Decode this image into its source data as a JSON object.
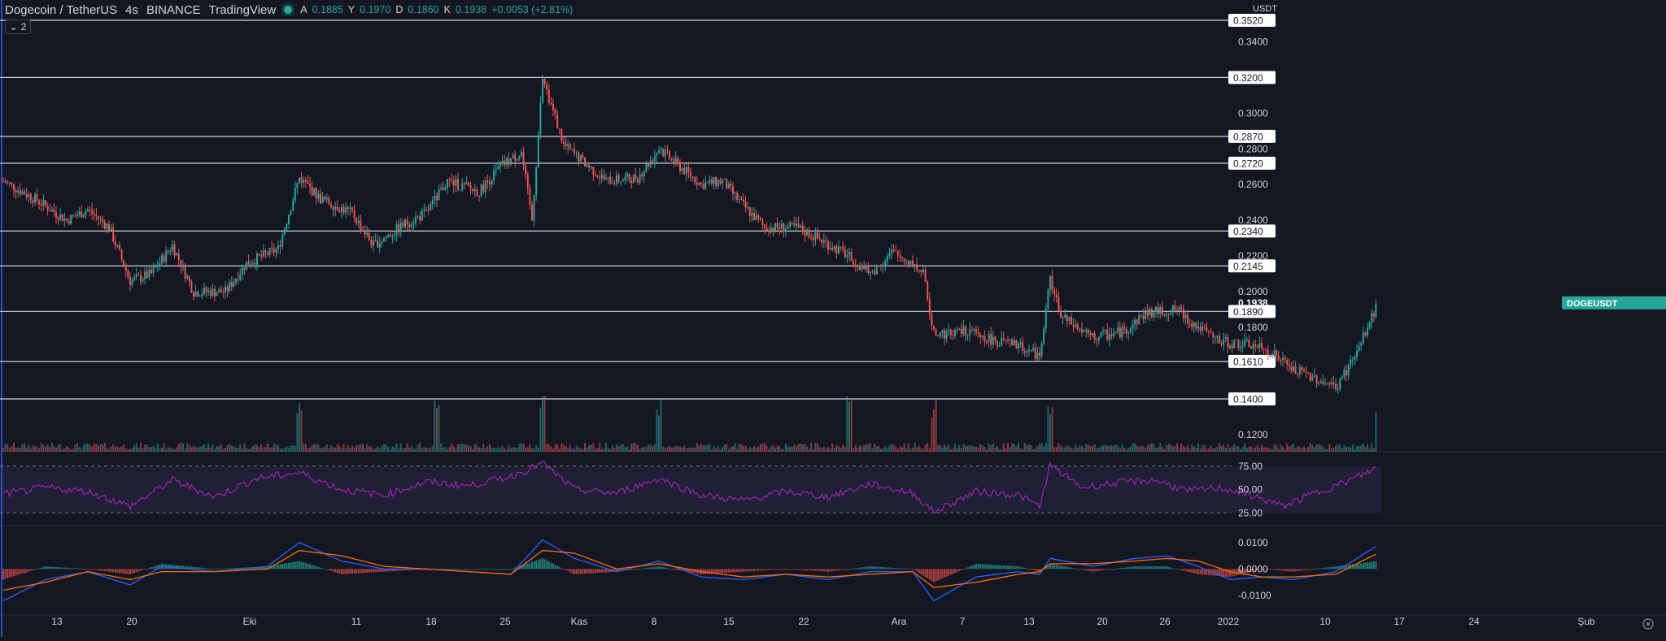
{
  "header": {
    "symbol": "Dogecoin / TetherUS",
    "interval": "4s",
    "exchange": "BINANCE",
    "source": "TradingView",
    "ohlc": [
      {
        "key": "A",
        "value": "0.1885"
      },
      {
        "key": "Y",
        "value": "0.1970"
      },
      {
        "key": "D",
        "value": "0.1860"
      },
      {
        "key": "K",
        "value": "0.1938"
      }
    ],
    "change": "+0.0053 (+2.81%)",
    "indicator_count": "2"
  },
  "colors": {
    "background": "#131722",
    "up": "#26a69a",
    "down": "#ef5350",
    "rsi": "#9c27b0",
    "macd": "#2962ff",
    "signal": "#ff6d00",
    "grid_text": "#d1d4dc"
  },
  "chart_data": {
    "type": "candlestick",
    "price_axis": {
      "unit": "USDT",
      "ticks": [
        "0.3400",
        "0.3000",
        "0.2800",
        "0.2600",
        "0.2400",
        "0.2200",
        "0.2000",
        "0.1800",
        "0.1200"
      ],
      "range": [
        0.11,
        0.355
      ]
    },
    "horizontal_levels": [
      "0.3520",
      "0.3200",
      "0.2870",
      "0.2720",
      "0.2340",
      "0.2145",
      "0.1890",
      "0.1610",
      "0.1400"
    ],
    "current_price": {
      "symbol": "DOGEUSDT",
      "value": "0.1938"
    },
    "time_axis": {
      "labels": [
        "13",
        "20",
        "Eki",
        "11",
        "18",
        "25",
        "Kas",
        "8",
        "15",
        "22",
        "Ara",
        "7",
        "13",
        "20",
        "26",
        "2022",
        "10",
        "17",
        "24",
        "Şub"
      ]
    },
    "price_path": [
      [
        0,
        0.262
      ],
      [
        3,
        0.252
      ],
      [
        6,
        0.24
      ],
      [
        8,
        0.246
      ],
      [
        10,
        0.236
      ],
      [
        12,
        0.206
      ],
      [
        14,
        0.21
      ],
      [
        16,
        0.226
      ],
      [
        18,
        0.2
      ],
      [
        21,
        0.2
      ],
      [
        23,
        0.216
      ],
      [
        26,
        0.224
      ],
      [
        28,
        0.264
      ],
      [
        30,
        0.252
      ],
      [
        33,
        0.244
      ],
      [
        35,
        0.226
      ],
      [
        38,
        0.238
      ],
      [
        40,
        0.244
      ],
      [
        42,
        0.262
      ],
      [
        45,
        0.256
      ],
      [
        47,
        0.27
      ],
      [
        49,
        0.278
      ],
      [
        50,
        0.24
      ],
      [
        51,
        0.32
      ],
      [
        53,
        0.282
      ],
      [
        55,
        0.272
      ],
      [
        57,
        0.262
      ],
      [
        60,
        0.264
      ],
      [
        62,
        0.28
      ],
      [
        64,
        0.27
      ],
      [
        66,
        0.26
      ],
      [
        68,
        0.262
      ],
      [
        70,
        0.248
      ],
      [
        72,
        0.236
      ],
      [
        75,
        0.236
      ],
      [
        77,
        0.23
      ],
      [
        80,
        0.22
      ],
      [
        82,
        0.21
      ],
      [
        84,
        0.222
      ],
      [
        86,
        0.216
      ],
      [
        87,
        0.21
      ],
      [
        88,
        0.176
      ],
      [
        91,
        0.178
      ],
      [
        94,
        0.172
      ],
      [
        96,
        0.17
      ],
      [
        98,
        0.164
      ],
      [
        99,
        0.208
      ],
      [
        100,
        0.186
      ],
      [
        103,
        0.174
      ],
      [
        106,
        0.178
      ],
      [
        108,
        0.188
      ],
      [
        111,
        0.19
      ],
      [
        113,
        0.18
      ],
      [
        115,
        0.172
      ],
      [
        118,
        0.17
      ],
      [
        120,
        0.166
      ],
      [
        122,
        0.156
      ],
      [
        124,
        0.152
      ],
      [
        126,
        0.146
      ],
      [
        128,
        0.166
      ],
      [
        130,
        0.1938
      ]
    ],
    "volume_spikes": [
      28,
      41,
      51,
      62,
      80,
      88,
      99,
      130
    ],
    "rsi": {
      "ticks": [
        "75.00",
        "50.00",
        "25.00"
      ],
      "upper": 75,
      "lower": 25,
      "path": [
        [
          0,
          45
        ],
        [
          4,
          52
        ],
        [
          8,
          48
        ],
        [
          12,
          32
        ],
        [
          16,
          60
        ],
        [
          20,
          42
        ],
        [
          24,
          62
        ],
        [
          28,
          68
        ],
        [
          32,
          50
        ],
        [
          36,
          44
        ],
        [
          40,
          58
        ],
        [
          44,
          54
        ],
        [
          48,
          64
        ],
        [
          51,
          78
        ],
        [
          54,
          50
        ],
        [
          58,
          46
        ],
        [
          62,
          62
        ],
        [
          66,
          44
        ],
        [
          70,
          38
        ],
        [
          74,
          48
        ],
        [
          78,
          42
        ],
        [
          82,
          56
        ],
        [
          86,
          46
        ],
        [
          88,
          26
        ],
        [
          92,
          48
        ],
        [
          96,
          44
        ],
        [
          98,
          32
        ],
        [
          99,
          76
        ],
        [
          102,
          52
        ],
        [
          106,
          58
        ],
        [
          109,
          60
        ],
        [
          112,
          48
        ],
        [
          115,
          52
        ],
        [
          118,
          44
        ],
        [
          121,
          32
        ],
        [
          124,
          46
        ],
        [
          127,
          58
        ],
        [
          130,
          74
        ]
      ]
    },
    "macd": {
      "ticks": [
        "0.0100",
        "0.0000",
        "-0.0100"
      ],
      "range": [
        -0.014,
        0.013
      ],
      "macd_path": [
        [
          0,
          -0.012
        ],
        [
          4,
          -0.004
        ],
        [
          8,
          -0.001
        ],
        [
          12,
          -0.006
        ],
        [
          15,
          0.001
        ],
        [
          20,
          -0.001
        ],
        [
          25,
          0.001
        ],
        [
          28,
          0.01
        ],
        [
          32,
          0.003
        ],
        [
          36,
          0.0
        ],
        [
          40,
          0.0
        ],
        [
          44,
          -0.001
        ],
        [
          48,
          -0.002
        ],
        [
          51,
          0.011
        ],
        [
          54,
          0.004
        ],
        [
          58,
          -0.001
        ],
        [
          62,
          0.003
        ],
        [
          66,
          -0.003
        ],
        [
          70,
          -0.004
        ],
        [
          74,
          -0.002
        ],
        [
          78,
          -0.004
        ],
        [
          82,
          -0.001
        ],
        [
          86,
          -0.001
        ],
        [
          88,
          -0.012
        ],
        [
          92,
          -0.003
        ],
        [
          96,
          -0.001
        ],
        [
          98,
          -0.002
        ],
        [
          99,
          0.004
        ],
        [
          103,
          0.001
        ],
        [
          107,
          0.004
        ],
        [
          110,
          0.005
        ],
        [
          113,
          0.001
        ],
        [
          116,
          -0.004
        ],
        [
          119,
          -0.003
        ],
        [
          122,
          -0.004
        ],
        [
          126,
          -0.001
        ],
        [
          130,
          0.009
        ]
      ],
      "signal_path": [
        [
          0,
          -0.008
        ],
        [
          4,
          -0.005
        ],
        [
          8,
          -0.001
        ],
        [
          12,
          -0.004
        ],
        [
          15,
          -0.001
        ],
        [
          20,
          -0.001
        ],
        [
          25,
          0.0
        ],
        [
          28,
          0.007
        ],
        [
          32,
          0.005
        ],
        [
          36,
          0.001
        ],
        [
          40,
          0.0
        ],
        [
          44,
          -0.001
        ],
        [
          48,
          -0.002
        ],
        [
          51,
          0.007
        ],
        [
          54,
          0.006
        ],
        [
          58,
          0.0
        ],
        [
          62,
          0.002
        ],
        [
          66,
          -0.001
        ],
        [
          70,
          -0.003
        ],
        [
          74,
          -0.002
        ],
        [
          78,
          -0.003
        ],
        [
          82,
          -0.002
        ],
        [
          86,
          -0.001
        ],
        [
          88,
          -0.007
        ],
        [
          92,
          -0.005
        ],
        [
          96,
          -0.002
        ],
        [
          98,
          -0.001
        ],
        [
          99,
          0.002
        ],
        [
          103,
          0.002
        ],
        [
          107,
          0.003
        ],
        [
          110,
          0.004
        ],
        [
          113,
          0.003
        ],
        [
          116,
          -0.001
        ],
        [
          119,
          -0.003
        ],
        [
          122,
          -0.003
        ],
        [
          126,
          -0.002
        ],
        [
          130,
          0.006
        ]
      ]
    }
  }
}
